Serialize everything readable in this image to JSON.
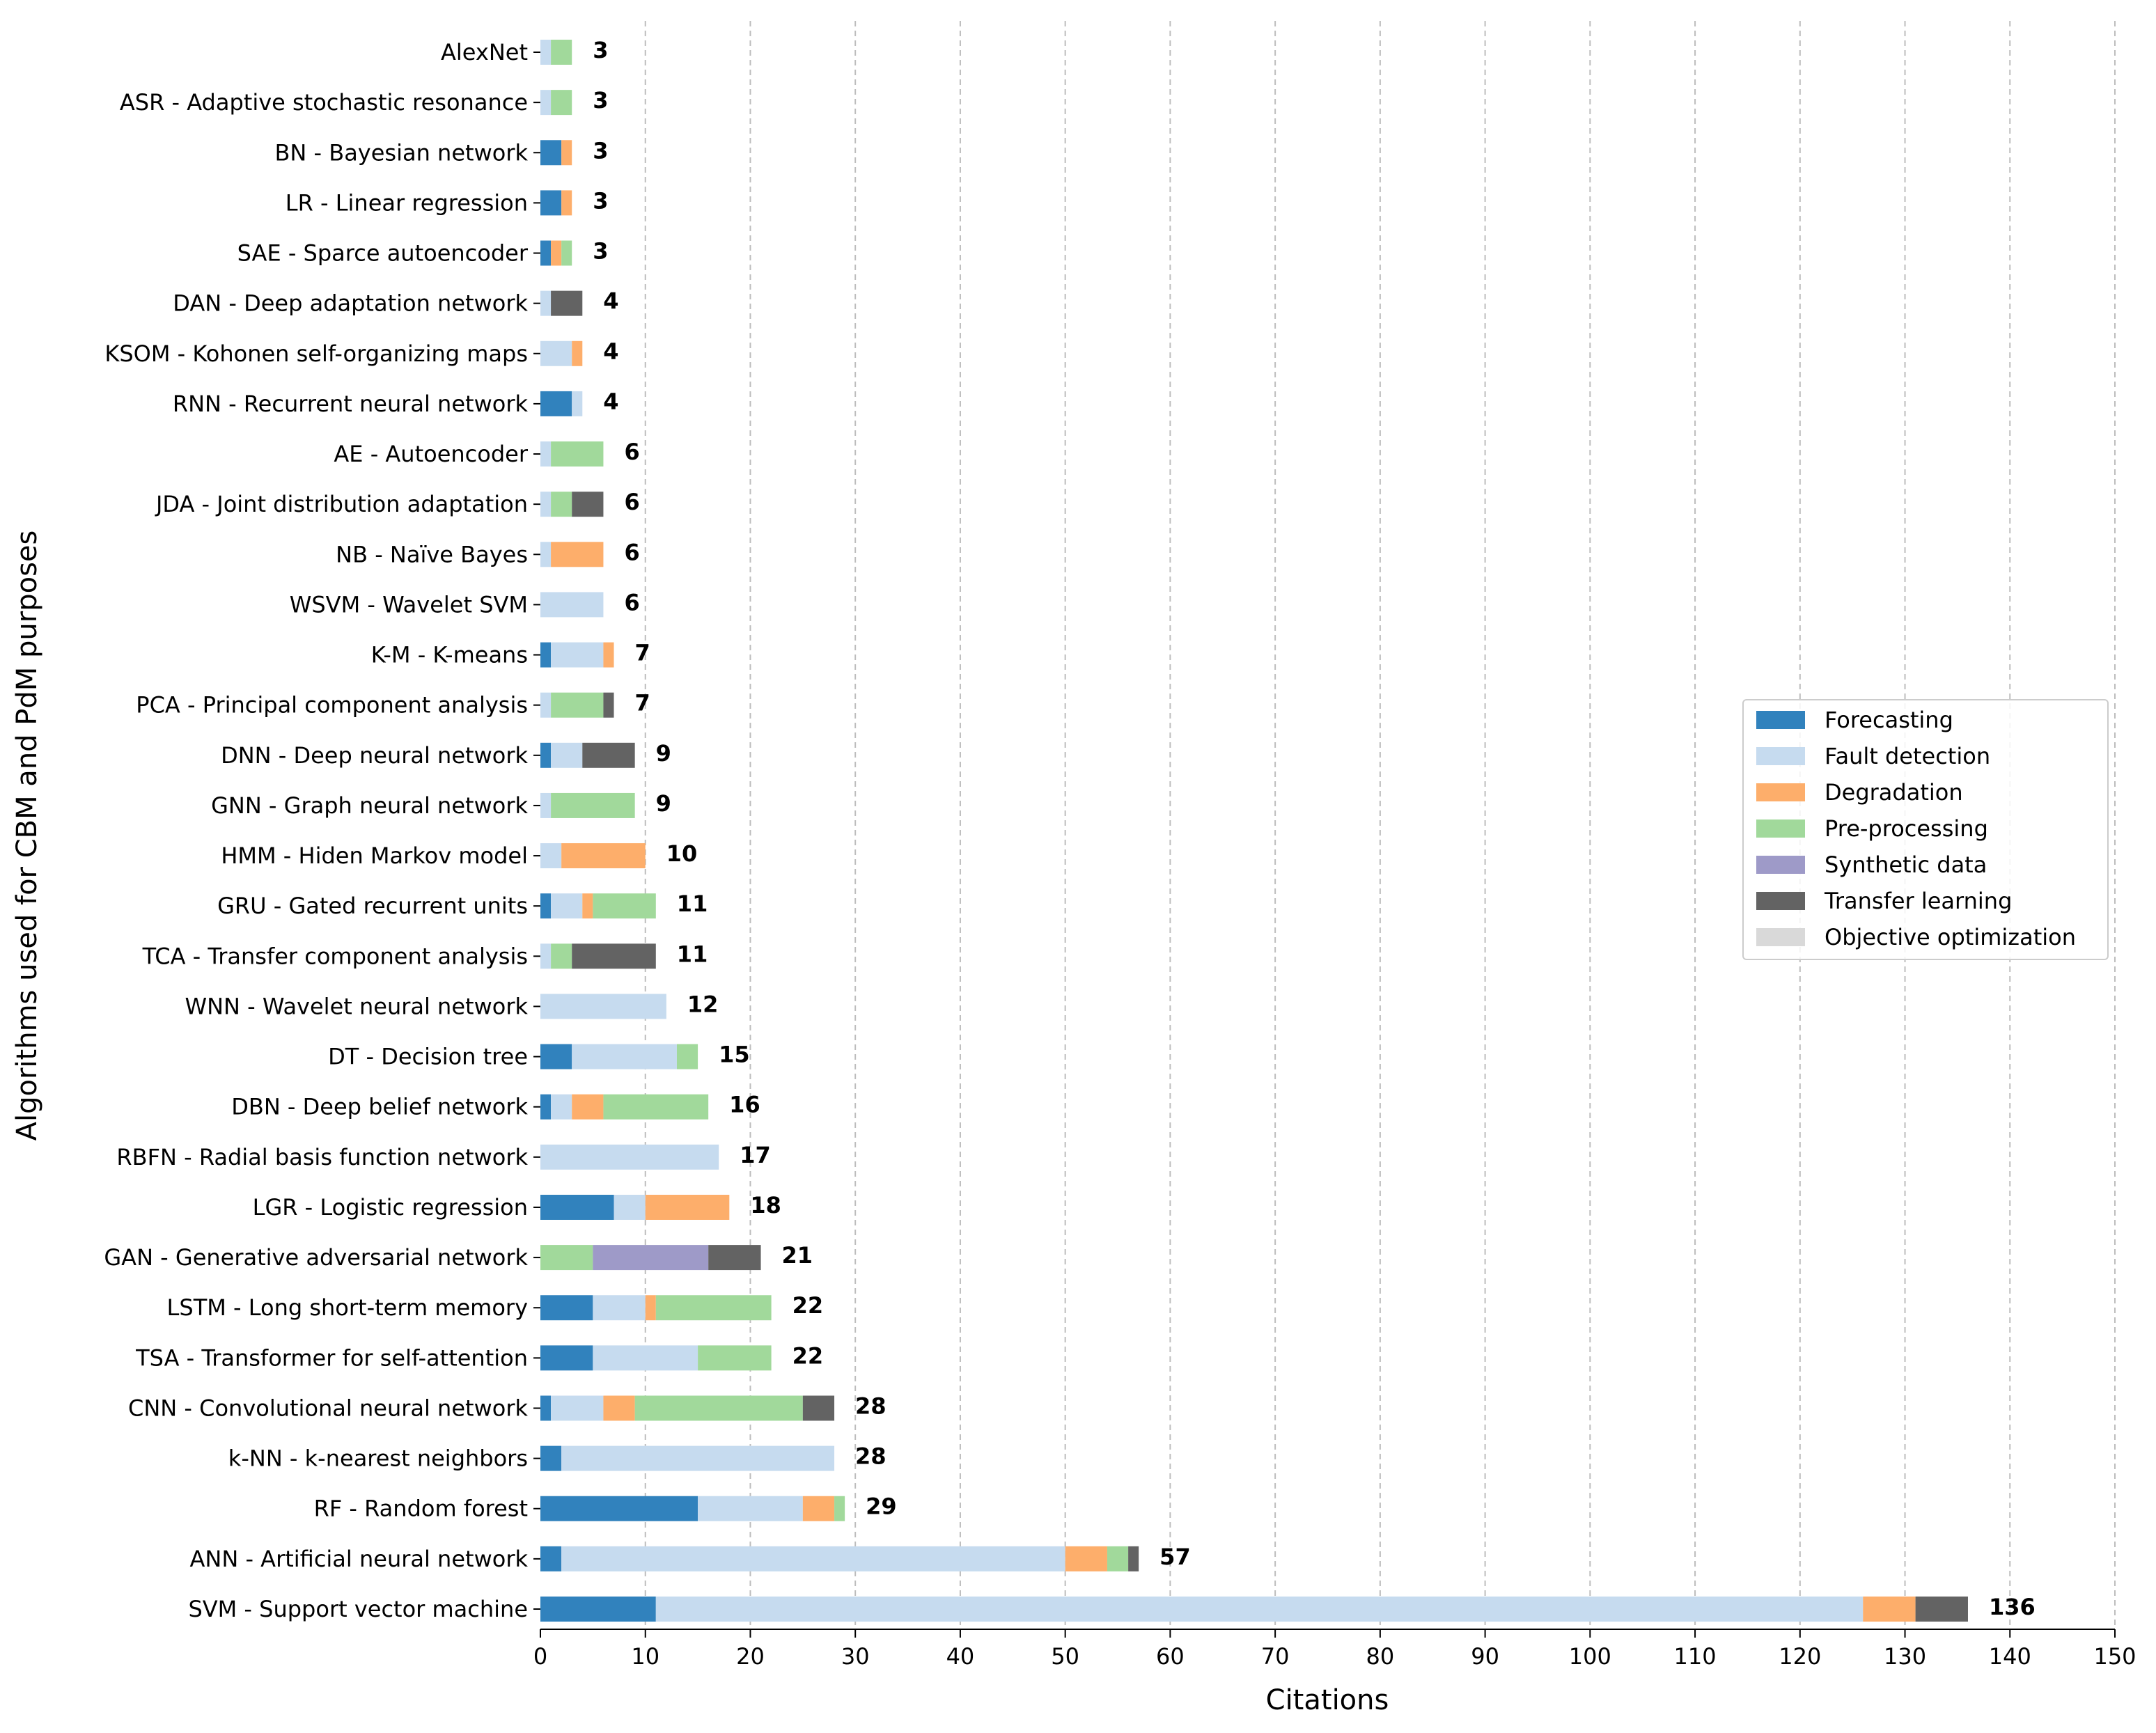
{
  "chart_data": {
    "type": "bar",
    "orientation": "horizontal",
    "stacked": true,
    "title": "",
    "xlabel": "Citations",
    "ylabel": "Algorithms used for CBM and PdM purposes",
    "xlim": [
      0,
      150
    ],
    "xticks": [
      0,
      10,
      20,
      30,
      40,
      50,
      60,
      70,
      80,
      90,
      100,
      110,
      120,
      130,
      140,
      150
    ],
    "grid": "vertical dashed",
    "legend_position": "center-right",
    "categories": [
      "AlexNet",
      "ASR - Adaptive stochastic resonance",
      "BN - Bayesian network",
      "LR - Linear regression",
      "SAE - Sparce autoencoder",
      "DAN - Deep adaptation network",
      "KSOM - Kohonen self-organizing maps",
      "RNN - Recurrent neural network",
      "AE - Autoencoder",
      "JDA - Joint distribution adaptation",
      "NB - Naïve Bayes",
      "WSVM - Wavelet SVM",
      "K-M - K-means",
      "PCA - Principal component analysis",
      "DNN - Deep neural network",
      "GNN - Graph neural network",
      "HMM - Hiden Markov model",
      "GRU - Gated recurrent units",
      "TCA - Transfer component analysis",
      "WNN - Wavelet neural network",
      "DT - Decision tree",
      "DBN - Deep belief network",
      "RBFN - Radial basis function network",
      "LGR - Logistic regression",
      "GAN - Generative adversarial network",
      "LSTM - Long short-term memory",
      "TSA - Transformer for self-attention",
      "CNN - Convolutional neural network",
      "k-NN - k-nearest neighbors",
      "RF - Random forest",
      "ANN - Artificial neural network",
      "SVM - Support vector machine"
    ],
    "totals": [
      "3",
      "3",
      "3",
      "3",
      "3",
      "4",
      "4",
      "4",
      "6",
      "6",
      "6",
      "6",
      "7",
      "7",
      "9",
      "9",
      "10",
      "11",
      "11",
      "12",
      "15",
      "16",
      "17",
      "18",
      "21",
      "22",
      "22",
      "28",
      "28",
      "29",
      "57",
      "136"
    ],
    "series": [
      {
        "name": "Forecasting",
        "color": "#3182bd",
        "values": [
          0,
          0,
          2,
          2,
          1,
          0,
          0,
          3,
          0,
          0,
          0,
          0,
          1,
          0,
          1,
          0,
          0,
          1,
          0,
          0,
          3,
          1,
          0,
          7,
          0,
          5,
          5,
          1,
          2,
          15,
          2,
          11
        ]
      },
      {
        "name": "Fault detection",
        "color": "#c6dbef",
        "values": [
          1,
          1,
          0,
          0,
          0,
          1,
          3,
          1,
          1,
          1,
          1,
          6,
          5,
          1,
          3,
          1,
          2,
          3,
          1,
          12,
          10,
          2,
          17,
          3,
          0,
          5,
          10,
          5,
          26,
          10,
          48,
          115
        ]
      },
      {
        "name": "Degradation",
        "color": "#fdae6b",
        "values": [
          0,
          0,
          1,
          1,
          1,
          0,
          1,
          0,
          0,
          0,
          5,
          0,
          1,
          0,
          0,
          0,
          8,
          1,
          0,
          0,
          0,
          3,
          0,
          8,
          0,
          1,
          0,
          3,
          0,
          3,
          4,
          5
        ]
      },
      {
        "name": "Pre-processing",
        "color": "#a1d99b",
        "values": [
          2,
          2,
          0,
          0,
          1,
          0,
          0,
          0,
          5,
          2,
          0,
          0,
          0,
          5,
          0,
          8,
          0,
          6,
          2,
          0,
          2,
          10,
          0,
          0,
          5,
          11,
          7,
          16,
          0,
          1,
          2,
          0
        ]
      },
      {
        "name": "Synthetic data",
        "color": "#9e9ac8",
        "values": [
          0,
          0,
          0,
          0,
          0,
          0,
          0,
          0,
          0,
          0,
          0,
          0,
          0,
          0,
          0,
          0,
          0,
          0,
          0,
          0,
          0,
          0,
          0,
          0,
          11,
          0,
          0,
          0,
          0,
          0,
          0,
          0
        ]
      },
      {
        "name": "Transfer learning",
        "color": "#636363",
        "values": [
          0,
          0,
          0,
          0,
          0,
          3,
          0,
          0,
          0,
          3,
          0,
          0,
          0,
          1,
          5,
          0,
          0,
          0,
          8,
          0,
          0,
          0,
          0,
          0,
          5,
          0,
          0,
          3,
          0,
          0,
          1,
          5
        ]
      },
      {
        "name": "Objective optimization",
        "color": "#d9d9d9",
        "values": [
          0,
          0,
          0,
          0,
          0,
          0,
          0,
          0,
          0,
          0,
          0,
          0,
          0,
          0,
          0,
          0,
          0,
          0,
          0,
          0,
          0,
          0,
          0,
          0,
          0,
          0,
          0,
          0,
          0,
          0,
          0,
          0
        ]
      }
    ]
  }
}
